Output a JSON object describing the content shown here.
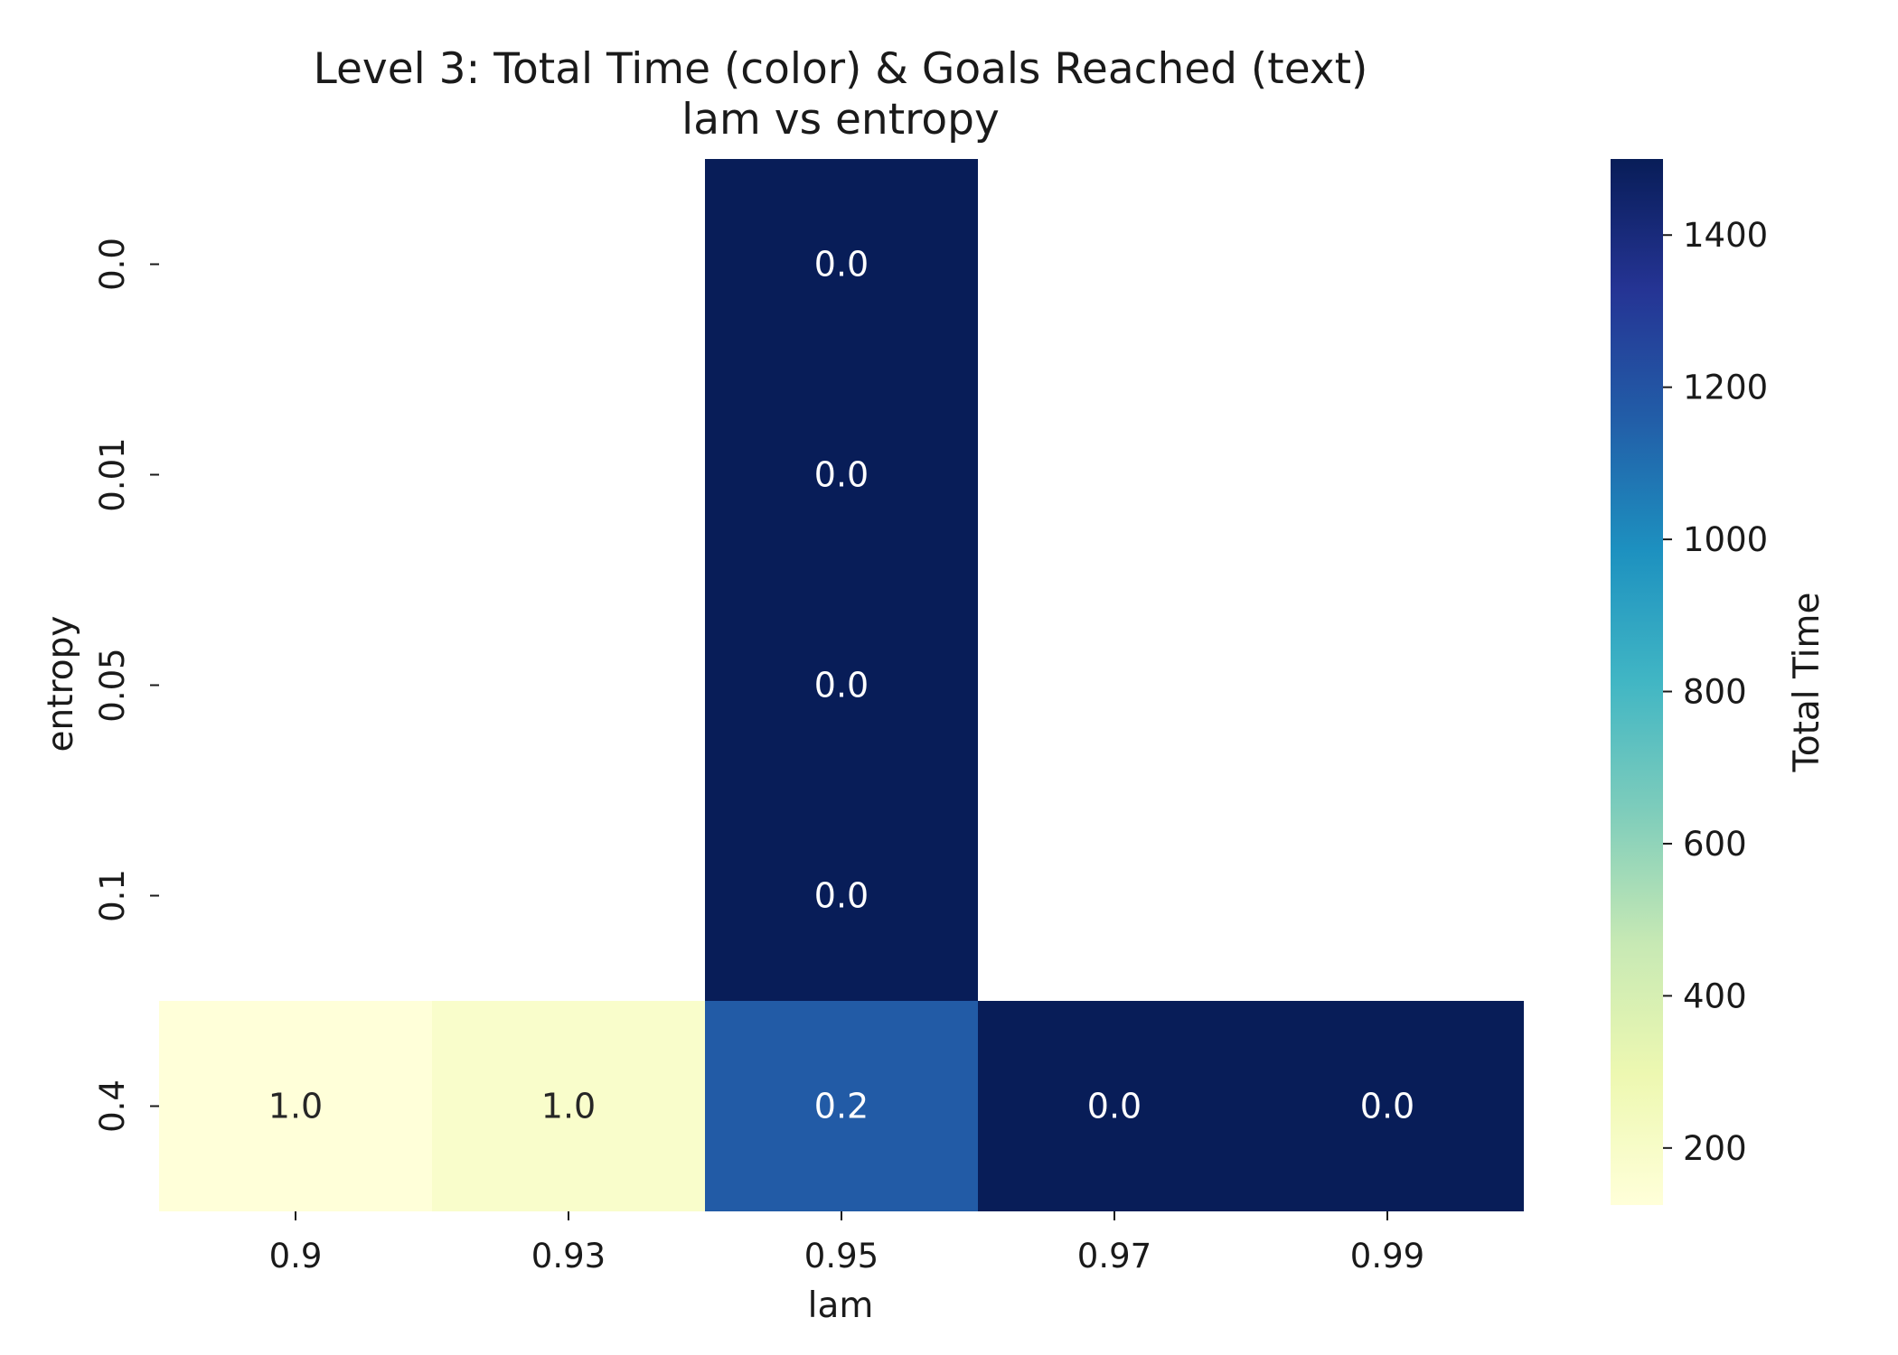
{
  "chart_data": {
    "type": "heatmap",
    "title": "Level 3: Total Time (color) & Goals Reached (text)",
    "subtitle": "lam vs entropy",
    "xlabel": "lam",
    "ylabel": "entropy",
    "x_categories": [
      "0.9",
      "0.93",
      "0.95",
      "0.97",
      "0.99"
    ],
    "y_categories": [
      "0.0",
      "0.01",
      "0.05",
      "0.1",
      "0.4"
    ],
    "color_values": [
      [
        null,
        null,
        1500,
        null,
        null
      ],
      [
        null,
        null,
        1500,
        null,
        null
      ],
      [
        null,
        null,
        1500,
        null,
        null
      ],
      [
        null,
        null,
        1500,
        null,
        null
      ],
      [
        125,
        185,
        1170,
        1500,
        1500
      ]
    ],
    "text_values": [
      [
        null,
        null,
        "0.0",
        null,
        null
      ],
      [
        null,
        null,
        "0.0",
        null,
        null
      ],
      [
        null,
        null,
        "0.0",
        null,
        null
      ],
      [
        null,
        null,
        "0.0",
        null,
        null
      ],
      [
        "1.0",
        "1.0",
        "0.2",
        "0.0",
        "0.0"
      ]
    ],
    "colorbar": {
      "label": "Total Time",
      "range": [
        125,
        1500
      ],
      "ticks": [
        200,
        400,
        600,
        800,
        1000,
        1200,
        1400
      ],
      "colormap": "YlGnBu",
      "colormap_stops": [
        "#ffffd9",
        "#edf8b1",
        "#c7e9b4",
        "#7fcdbb",
        "#41b6c4",
        "#1d91c0",
        "#225ea8",
        "#253494",
        "#081d58"
      ]
    },
    "grid": false,
    "legend": "none"
  }
}
